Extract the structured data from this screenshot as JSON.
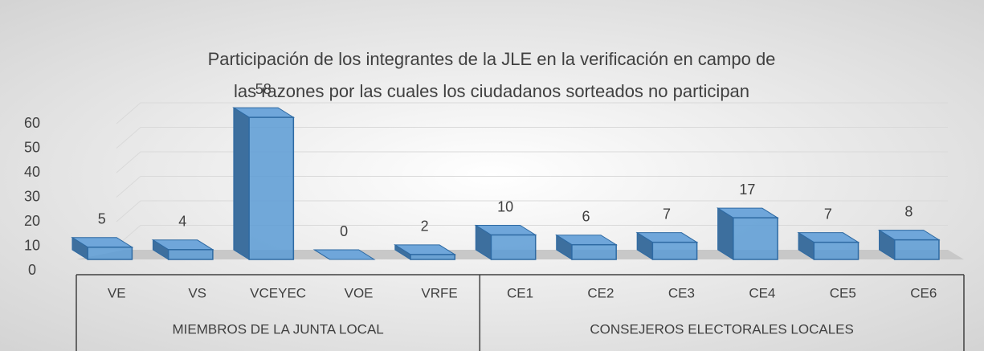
{
  "chart_data": {
    "type": "bar3d",
    "title": "Participación de los integrantes de la JLE en la verificación en campo de las razones por las cuales los ciudadanos sorteados no participan",
    "category_groups": [
      {
        "name": "MIEMBROS DE LA JUNTA LOCAL",
        "categories": [
          "VE",
          "VS",
          "VCEYEC",
          "VOE",
          "VRFE"
        ]
      },
      {
        "name": "CONSEJEROS ELECTORALES LOCALES",
        "categories": [
          "CE1",
          "CE2",
          "CE3",
          "CE4",
          "CE5",
          "CE6"
        ]
      }
    ],
    "values": [
      5,
      4,
      58,
      0,
      2,
      10,
      6,
      7,
      17,
      7,
      8
    ],
    "color": "#5b9bd5",
    "ylim": [
      0,
      60
    ],
    "yticks": [
      0,
      10,
      20,
      30,
      40,
      50,
      60
    ],
    "grid": true
  }
}
